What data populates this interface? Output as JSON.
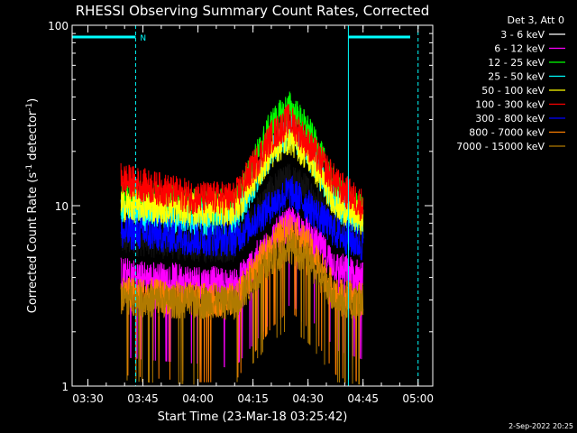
{
  "chart_data": {
    "type": "line",
    "title": "RHESSI Observing Summary Count Rates, Corrected",
    "xlabel": "Start Time (23-Mar-18 03:25:42)",
    "ylabel_main": "Corrected Count Rate (s",
    "ylabel_sup1": "-1",
    "ylabel_mid": " detector",
    "ylabel_sup2": "-1",
    "ylabel_end": ")",
    "y_scale": "log",
    "ylim": [
      1,
      100
    ],
    "xlim": [
      "03:25:42",
      "05:04:00"
    ],
    "x_ticks": [
      "03:30",
      "03:45",
      "04:00",
      "04:15",
      "04:30",
      "04:45",
      "05:00"
    ],
    "y_ticks": [
      "1",
      "10",
      "100"
    ],
    "legend_title": "Det 3, Att 0",
    "legend_position": "top-right",
    "data_start": "03:39",
    "data_end": "04:45",
    "series": [
      {
        "name": "3 - 6 keV",
        "color": "#000000",
        "key_times": [
          "03:39",
          "03:45",
          "04:00",
          "04:10",
          "04:20",
          "04:25",
          "04:30",
          "04:38",
          "04:45"
        ],
        "key_values": [
          6.5,
          6.5,
          6.0,
          6.0,
          12,
          14,
          12,
          8,
          6
        ]
      },
      {
        "name": "6 - 12 keV",
        "color": "#ff00ff",
        "key_times": [
          "03:39",
          "03:45",
          "04:00",
          "04:10",
          "04:20",
          "04:25",
          "04:30",
          "04:38",
          "04:45"
        ],
        "key_values": [
          4.2,
          4.0,
          3.8,
          3.6,
          6.5,
          8,
          7,
          4.5,
          4
        ]
      },
      {
        "name": "12 - 25 keV",
        "color": "#00ff00",
        "key_times": [
          "03:39",
          "03:45",
          "04:00",
          "04:10",
          "04:20",
          "04:25",
          "04:30",
          "04:38",
          "04:45"
        ],
        "key_values": [
          11,
          11,
          10,
          10,
          28,
          35,
          26,
          12,
          9
        ]
      },
      {
        "name": "25 - 50 keV",
        "color": "#00ffff",
        "key_times": [
          "03:39",
          "03:45",
          "04:00",
          "04:10",
          "04:20",
          "04:25",
          "04:30",
          "04:38",
          "04:45"
        ],
        "key_values": [
          9,
          9,
          8.5,
          8.5,
          20,
          26,
          20,
          10,
          8
        ]
      },
      {
        "name": "50 - 100 keV",
        "color": "#ffff00",
        "key_times": [
          "03:39",
          "03:45",
          "04:00",
          "04:10",
          "04:20",
          "04:25",
          "04:30",
          "04:38",
          "04:45"
        ],
        "key_values": [
          10,
          10,
          9.5,
          9.5,
          20,
          24,
          19,
          10,
          8.5
        ]
      },
      {
        "name": "100 - 300 keV",
        "color": "#ff0000",
        "key_times": [
          "03:39",
          "03:45",
          "04:00",
          "04:10",
          "04:20",
          "04:25",
          "04:30",
          "04:38",
          "04:45"
        ],
        "key_values": [
          14,
          13,
          11,
          11,
          24,
          30,
          22,
          13,
          10
        ]
      },
      {
        "name": "300 - 800 keV",
        "color": "#0000ff",
        "key_times": [
          "03:39",
          "03:45",
          "04:00",
          "04:10",
          "04:20",
          "04:25",
          "04:30",
          "04:38",
          "04:45"
        ],
        "key_values": [
          7,
          7,
          6.5,
          6.5,
          10,
          12,
          10,
          7,
          6
        ]
      },
      {
        "name": "800 - 7000 keV",
        "color": "#ff8000",
        "key_times": [
          "03:39",
          "03:45",
          "04:00",
          "04:10",
          "04:20",
          "04:25",
          "04:30",
          "04:38",
          "04:45"
        ],
        "key_values": [
          3.3,
          3.2,
          3.0,
          3.0,
          6,
          7.5,
          6,
          3.2,
          3
        ]
      },
      {
        "name": "7000 - 15000 keV",
        "color": "#b07a00",
        "key_times": [
          "03:39",
          "03:45",
          "04:00",
          "04:10",
          "04:20",
          "04:25",
          "04:30",
          "04:38",
          "04:45"
        ],
        "key_values": [
          3.1,
          3.0,
          2.9,
          2.9,
          5,
          6,
          5,
          3,
          2.9
        ]
      }
    ],
    "night_periods": [
      {
        "start": "03:25:42",
        "end": "03:43",
        "label": "N"
      },
      {
        "start": "04:41",
        "end": "05:04"
      }
    ],
    "night_color": "#00ffff",
    "vertical_lines": [
      {
        "time": "03:25:42",
        "style": "solid"
      },
      {
        "time": "03:43",
        "style": "dashed"
      },
      {
        "time": "04:41",
        "style": "solid"
      },
      {
        "time": "05:00",
        "style": "dashed"
      }
    ],
    "footer_date": "2-Sep-2022 20:25",
    "grid": false
  }
}
